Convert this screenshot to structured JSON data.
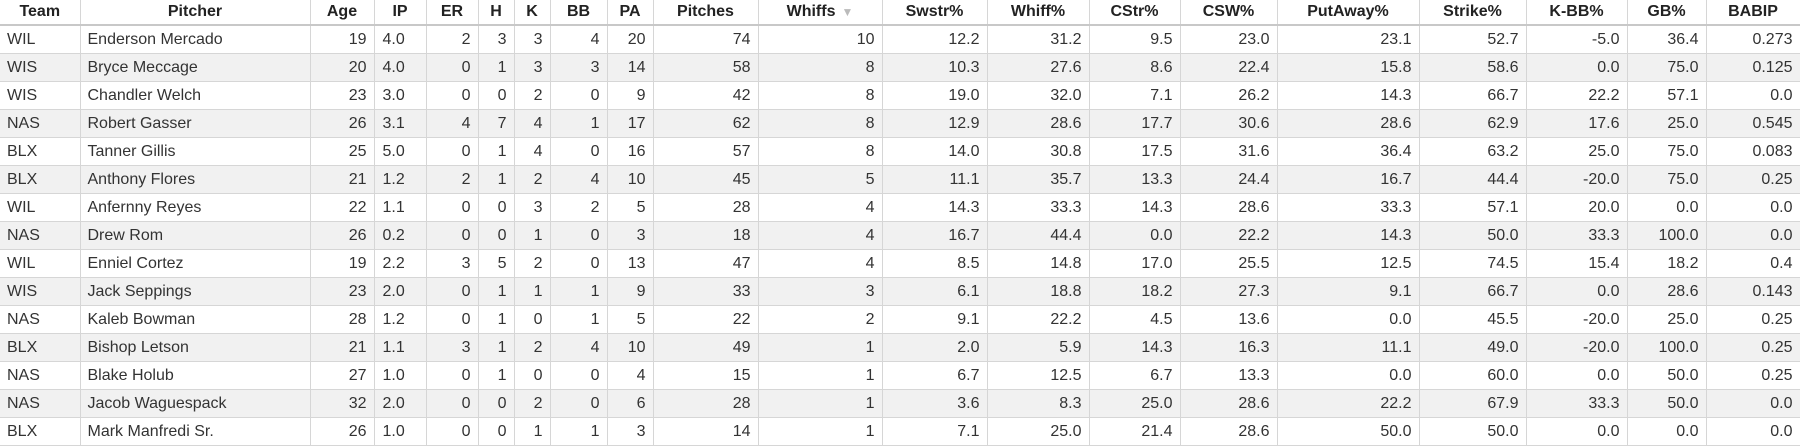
{
  "table": {
    "columns": [
      "Team",
      "Pitcher",
      "Age",
      "IP",
      "ER",
      "H",
      "K",
      "BB",
      "PA",
      "Pitches",
      "Whiffs",
      "Swstr%",
      "Whiff%",
      "CStr%",
      "CSW%",
      "PutAway%",
      "Strike%",
      "K-BB%",
      "GB%",
      "BABIP"
    ],
    "sorted_column": "Whiffs",
    "sort_direction": "descending",
    "sort_icon": "triangle-down-icon",
    "rows": [
      [
        "WIL",
        "Enderson Mercado",
        "19",
        "4.0",
        "2",
        "3",
        "3",
        "4",
        "20",
        "74",
        "10",
        "12.2",
        "31.2",
        "9.5",
        "23.0",
        "23.1",
        "52.7",
        "-5.0",
        "36.4",
        "0.273"
      ],
      [
        "WIS",
        "Bryce Meccage",
        "20",
        "4.0",
        "0",
        "1",
        "3",
        "3",
        "14",
        "58",
        "8",
        "10.3",
        "27.6",
        "8.6",
        "22.4",
        "15.8",
        "58.6",
        "0.0",
        "75.0",
        "0.125"
      ],
      [
        "WIS",
        "Chandler Welch",
        "23",
        "3.0",
        "0",
        "0",
        "2",
        "0",
        "9",
        "42",
        "8",
        "19.0",
        "32.0",
        "7.1",
        "26.2",
        "14.3",
        "66.7",
        "22.2",
        "57.1",
        "0.0"
      ],
      [
        "NAS",
        "Robert Gasser",
        "26",
        "3.1",
        "4",
        "7",
        "4",
        "1",
        "17",
        "62",
        "8",
        "12.9",
        "28.6",
        "17.7",
        "30.6",
        "28.6",
        "62.9",
        "17.6",
        "25.0",
        "0.545"
      ],
      [
        "BLX",
        "Tanner Gillis",
        "25",
        "5.0",
        "0",
        "1",
        "4",
        "0",
        "16",
        "57",
        "8",
        "14.0",
        "30.8",
        "17.5",
        "31.6",
        "36.4",
        "63.2",
        "25.0",
        "75.0",
        "0.083"
      ],
      [
        "BLX",
        "Anthony Flores",
        "21",
        "1.2",
        "2",
        "1",
        "2",
        "4",
        "10",
        "45",
        "5",
        "11.1",
        "35.7",
        "13.3",
        "24.4",
        "16.7",
        "44.4",
        "-20.0",
        "75.0",
        "0.25"
      ],
      [
        "WIL",
        "Anfernny Reyes",
        "22",
        "1.1",
        "0",
        "0",
        "3",
        "2",
        "5",
        "28",
        "4",
        "14.3",
        "33.3",
        "14.3",
        "28.6",
        "33.3",
        "57.1",
        "20.0",
        "0.0",
        "0.0"
      ],
      [
        "NAS",
        "Drew Rom",
        "26",
        "0.2",
        "0",
        "0",
        "1",
        "0",
        "3",
        "18",
        "4",
        "16.7",
        "44.4",
        "0.0",
        "22.2",
        "14.3",
        "50.0",
        "33.3",
        "100.0",
        "0.0"
      ],
      [
        "WIL",
        "Enniel Cortez",
        "19",
        "2.2",
        "3",
        "5",
        "2",
        "0",
        "13",
        "47",
        "4",
        "8.5",
        "14.8",
        "17.0",
        "25.5",
        "12.5",
        "74.5",
        "15.4",
        "18.2",
        "0.4"
      ],
      [
        "WIS",
        "Jack Seppings",
        "23",
        "2.0",
        "0",
        "1",
        "1",
        "1",
        "9",
        "33",
        "3",
        "6.1",
        "18.8",
        "18.2",
        "27.3",
        "9.1",
        "66.7",
        "0.0",
        "28.6",
        "0.143"
      ],
      [
        "NAS",
        "Kaleb Bowman",
        "28",
        "1.2",
        "0",
        "1",
        "0",
        "1",
        "5",
        "22",
        "2",
        "9.1",
        "22.2",
        "4.5",
        "13.6",
        "0.0",
        "45.5",
        "-20.0",
        "25.0",
        "0.25"
      ],
      [
        "BLX",
        "Bishop Letson",
        "21",
        "1.1",
        "3",
        "1",
        "2",
        "4",
        "10",
        "49",
        "1",
        "2.0",
        "5.9",
        "14.3",
        "16.3",
        "11.1",
        "49.0",
        "-20.0",
        "100.0",
        "0.25"
      ],
      [
        "NAS",
        "Blake Holub",
        "27",
        "1.0",
        "0",
        "1",
        "0",
        "0",
        "4",
        "15",
        "1",
        "6.7",
        "12.5",
        "6.7",
        "13.3",
        "0.0",
        "60.0",
        "0.0",
        "50.0",
        "0.25"
      ],
      [
        "NAS",
        "Jacob Waguespack",
        "32",
        "2.0",
        "0",
        "0",
        "2",
        "0",
        "6",
        "28",
        "1",
        "3.6",
        "8.3",
        "25.0",
        "28.6",
        "22.2",
        "67.9",
        "33.3",
        "50.0",
        "0.0"
      ],
      [
        "BLX",
        "Mark Manfredi Sr.",
        "26",
        "1.0",
        "0",
        "0",
        "1",
        "1",
        "3",
        "14",
        "1",
        "7.1",
        "25.0",
        "21.4",
        "28.6",
        "50.0",
        "50.0",
        "0.0",
        "0.0",
        "0.0"
      ]
    ]
  }
}
